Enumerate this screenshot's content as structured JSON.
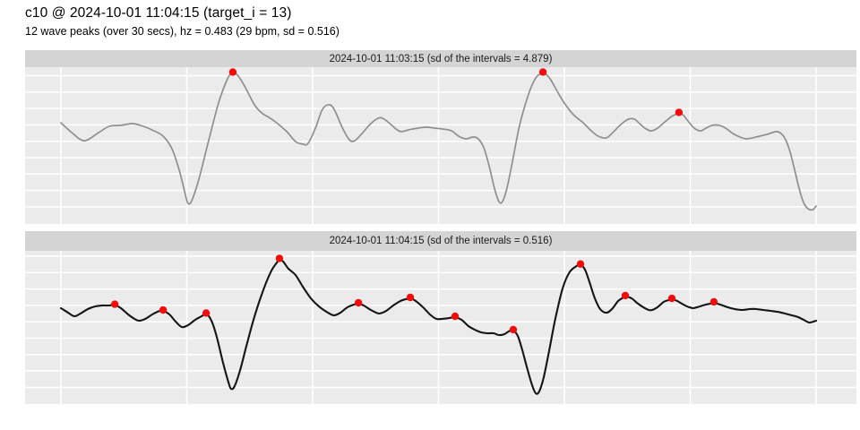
{
  "header": {
    "title": "c10 @ 2024-10-01 11:04:15 (target_i = 13)",
    "subtitle": "12 wave peaks (over 30 secs), hz = 0.483 (29 bpm, sd = 0.516)"
  },
  "colors": {
    "panel_bg": "#ebebeb",
    "strip_bg": "#d4d4d4",
    "gridline": "#ffffff",
    "peak_dot": "#f20d0d",
    "line_top": "#8f8f8f",
    "line_bottom": "#151515"
  },
  "chart_data": [
    {
      "type": "line",
      "title": "2024-10-01 11:03:15 (sd of the intervals = 4.879)",
      "x_unit": "seconds (no tick labels shown; vertical gridlines every 5 s)",
      "x_range": [
        0,
        30
      ],
      "y_unit": "normalized amplitude (0 = panel bottom, 1 = panel top; no tick labels shown)",
      "grid": "on",
      "legend": "none",
      "line_color_key": "line_top",
      "peak_count": 3,
      "points": [
        [
          0,
          0.646
        ],
        [
          0.43,
          0.583
        ],
        [
          0.93,
          0.531
        ],
        [
          1.5,
          0.583
        ],
        [
          1.92,
          0.623
        ],
        [
          2.38,
          0.629
        ],
        [
          2.85,
          0.64
        ],
        [
          3.27,
          0.623
        ],
        [
          3.7,
          0.594
        ],
        [
          4.06,
          0.56
        ],
        [
          4.41,
          0.48
        ],
        [
          4.7,
          0.343
        ],
        [
          4.95,
          0.183
        ],
        [
          5.05,
          0.131
        ],
        [
          5.2,
          0.149
        ],
        [
          5.48,
          0.286
        ],
        [
          5.84,
          0.514
        ],
        [
          6.26,
          0.771
        ],
        [
          6.62,
          0.926
        ],
        [
          6.83,
          0.963
        ],
        [
          7.05,
          0.943
        ],
        [
          7.33,
          0.869
        ],
        [
          7.69,
          0.76
        ],
        [
          7.97,
          0.709
        ],
        [
          8.26,
          0.68
        ],
        [
          8.61,
          0.64
        ],
        [
          8.97,
          0.589
        ],
        [
          9.32,
          0.526
        ],
        [
          9.61,
          0.509
        ],
        [
          9.82,
          0.514
        ],
        [
          10.11,
          0.611
        ],
        [
          10.39,
          0.731
        ],
        [
          10.68,
          0.76
        ],
        [
          10.89,
          0.72
        ],
        [
          11.17,
          0.617
        ],
        [
          11.46,
          0.537
        ],
        [
          11.67,
          0.531
        ],
        [
          11.96,
          0.577
        ],
        [
          12.31,
          0.64
        ],
        [
          12.6,
          0.674
        ],
        [
          12.78,
          0.674
        ],
        [
          13.03,
          0.646
        ],
        [
          13.31,
          0.606
        ],
        [
          13.52,
          0.589
        ],
        [
          13.81,
          0.6
        ],
        [
          14.16,
          0.611
        ],
        [
          14.52,
          0.617
        ],
        [
          14.88,
          0.611
        ],
        [
          15.16,
          0.606
        ],
        [
          15.52,
          0.594
        ],
        [
          15.8,
          0.56
        ],
        [
          16.09,
          0.543
        ],
        [
          16.37,
          0.554
        ],
        [
          16.58,
          0.543
        ],
        [
          16.8,
          0.486
        ],
        [
          17.01,
          0.371
        ],
        [
          17.22,
          0.229
        ],
        [
          17.4,
          0.143
        ],
        [
          17.54,
          0.143
        ],
        [
          17.72,
          0.229
        ],
        [
          17.94,
          0.4
        ],
        [
          18.22,
          0.629
        ],
        [
          18.58,
          0.829
        ],
        [
          18.86,
          0.931
        ],
        [
          19.08,
          0.96
        ],
        [
          19.22,
          0.96
        ],
        [
          19.43,
          0.926
        ],
        [
          19.72,
          0.846
        ],
        [
          20,
          0.771
        ],
        [
          20.36,
          0.697
        ],
        [
          20.71,
          0.651
        ],
        [
          21.07,
          0.594
        ],
        [
          21.35,
          0.56
        ],
        [
          21.67,
          0.549
        ],
        [
          21.92,
          0.583
        ],
        [
          22.28,
          0.64
        ],
        [
          22.56,
          0.669
        ],
        [
          22.78,
          0.669
        ],
        [
          22.99,
          0.64
        ],
        [
          23.2,
          0.611
        ],
        [
          23.45,
          0.594
        ],
        [
          23.7,
          0.611
        ],
        [
          23.99,
          0.651
        ],
        [
          24.27,
          0.686
        ],
        [
          24.52,
          0.703
        ],
        [
          24.7,
          0.697
        ],
        [
          24.91,
          0.657
        ],
        [
          25.16,
          0.611
        ],
        [
          25.41,
          0.594
        ],
        [
          25.62,
          0.611
        ],
        [
          25.87,
          0.629
        ],
        [
          26.16,
          0.629
        ],
        [
          26.41,
          0.611
        ],
        [
          26.69,
          0.577
        ],
        [
          26.98,
          0.554
        ],
        [
          27.22,
          0.543
        ],
        [
          27.47,
          0.549
        ],
        [
          27.76,
          0.56
        ],
        [
          28.04,
          0.571
        ],
        [
          28.26,
          0.583
        ],
        [
          28.43,
          0.589
        ],
        [
          28.61,
          0.577
        ],
        [
          28.79,
          0.537
        ],
        [
          28.97,
          0.457
        ],
        [
          29.15,
          0.343
        ],
        [
          29.32,
          0.229
        ],
        [
          29.5,
          0.137
        ],
        [
          29.68,
          0.097
        ],
        [
          29.86,
          0.091
        ],
        [
          30,
          0.114
        ]
      ],
      "peaks": [
        [
          6.83,
          0.963
        ],
        [
          19.15,
          0.963
        ],
        [
          24.55,
          0.706
        ]
      ]
    },
    {
      "type": "line",
      "title": "2024-10-01 11:04:15 (sd of the intervals = 0.516)",
      "x_unit": "seconds (no tick labels shown; vertical gridlines every 5 s)",
      "x_range": [
        0,
        30
      ],
      "y_unit": "normalized amplitude (0 = panel bottom, 1 = panel top; no tick labels shown)",
      "grid": "on",
      "legend": "none",
      "line_color_key": "line_bottom",
      "peak_count": 12,
      "points": [
        [
          0,
          0.626
        ],
        [
          0.29,
          0.596
        ],
        [
          0.53,
          0.573
        ],
        [
          0.78,
          0.591
        ],
        [
          1.07,
          0.62
        ],
        [
          1.35,
          0.637
        ],
        [
          1.64,
          0.643
        ],
        [
          1.89,
          0.643
        ],
        [
          2.14,
          0.646
        ],
        [
          2.38,
          0.626
        ],
        [
          2.67,
          0.585
        ],
        [
          2.92,
          0.556
        ],
        [
          3.1,
          0.544
        ],
        [
          3.35,
          0.556
        ],
        [
          3.63,
          0.585
        ],
        [
          3.88,
          0.605
        ],
        [
          4.06,
          0.608
        ],
        [
          4.31,
          0.585
        ],
        [
          4.56,
          0.538
        ],
        [
          4.8,
          0.503
        ],
        [
          5.05,
          0.515
        ],
        [
          5.34,
          0.55
        ],
        [
          5.59,
          0.573
        ],
        [
          5.77,
          0.588
        ],
        [
          5.98,
          0.544
        ],
        [
          6.19,
          0.439
        ],
        [
          6.44,
          0.269
        ],
        [
          6.66,
          0.14
        ],
        [
          6.76,
          0.099
        ],
        [
          6.9,
          0.117
        ],
        [
          7.12,
          0.222
        ],
        [
          7.37,
          0.38
        ],
        [
          7.65,
          0.55
        ],
        [
          7.97,
          0.713
        ],
        [
          8.33,
          0.86
        ],
        [
          8.58,
          0.924
        ],
        [
          8.68,
          0.945
        ],
        [
          8.83,
          0.93
        ],
        [
          9.04,
          0.883
        ],
        [
          9.32,
          0.842
        ],
        [
          9.61,
          0.766
        ],
        [
          9.93,
          0.69
        ],
        [
          10.25,
          0.637
        ],
        [
          10.61,
          0.596
        ],
        [
          10.85,
          0.579
        ],
        [
          11.1,
          0.596
        ],
        [
          11.39,
          0.632
        ],
        [
          11.64,
          0.649
        ],
        [
          11.82,
          0.655
        ],
        [
          12.03,
          0.643
        ],
        [
          12.31,
          0.614
        ],
        [
          12.53,
          0.596
        ],
        [
          12.67,
          0.591
        ],
        [
          12.92,
          0.608
        ],
        [
          13.2,
          0.643
        ],
        [
          13.49,
          0.673
        ],
        [
          13.7,
          0.684
        ],
        [
          13.88,
          0.69
        ],
        [
          14.09,
          0.673
        ],
        [
          14.38,
          0.632
        ],
        [
          14.66,
          0.585
        ],
        [
          14.91,
          0.556
        ],
        [
          15.16,
          0.556
        ],
        [
          15.41,
          0.561
        ],
        [
          15.66,
          0.567
        ],
        [
          15.91,
          0.55
        ],
        [
          16.19,
          0.509
        ],
        [
          16.44,
          0.485
        ],
        [
          16.69,
          0.468
        ],
        [
          16.94,
          0.462
        ],
        [
          17.19,
          0.462
        ],
        [
          17.4,
          0.45
        ],
        [
          17.62,
          0.456
        ],
        [
          17.79,
          0.474
        ],
        [
          17.97,
          0.48
        ],
        [
          18.15,
          0.444
        ],
        [
          18.33,
          0.351
        ],
        [
          18.54,
          0.222
        ],
        [
          18.72,
          0.123
        ],
        [
          18.86,
          0.07
        ],
        [
          19,
          0.082
        ],
        [
          19.18,
          0.175
        ],
        [
          19.4,
          0.351
        ],
        [
          19.64,
          0.556
        ],
        [
          19.93,
          0.754
        ],
        [
          20.18,
          0.854
        ],
        [
          20.43,
          0.895
        ],
        [
          20.64,
          0.908
        ],
        [
          20.82,
          0.877
        ],
        [
          21,
          0.795
        ],
        [
          21.21,
          0.69
        ],
        [
          21.42,
          0.62
        ],
        [
          21.67,
          0.596
        ],
        [
          21.89,
          0.62
        ],
        [
          22.14,
          0.673
        ],
        [
          22.35,
          0.696
        ],
        [
          22.42,
          0.702
        ],
        [
          22.67,
          0.69
        ],
        [
          22.88,
          0.661
        ],
        [
          23.13,
          0.632
        ],
        [
          23.35,
          0.614
        ],
        [
          23.49,
          0.614
        ],
        [
          23.7,
          0.632
        ],
        [
          23.95,
          0.667
        ],
        [
          24.13,
          0.678
        ],
        [
          24.27,
          0.684
        ],
        [
          24.48,
          0.673
        ],
        [
          24.73,
          0.649
        ],
        [
          24.95,
          0.632
        ],
        [
          25.13,
          0.626
        ],
        [
          25.37,
          0.637
        ],
        [
          25.62,
          0.649
        ],
        [
          25.8,
          0.655
        ],
        [
          25.94,
          0.661
        ],
        [
          26.19,
          0.649
        ],
        [
          26.48,
          0.632
        ],
        [
          26.76,
          0.62
        ],
        [
          27.08,
          0.614
        ],
        [
          27.37,
          0.62
        ],
        [
          27.62,
          0.62
        ],
        [
          27.9,
          0.614
        ],
        [
          28.19,
          0.608
        ],
        [
          28.47,
          0.602
        ],
        [
          28.75,
          0.591
        ],
        [
          29.04,
          0.579
        ],
        [
          29.29,
          0.567
        ],
        [
          29.5,
          0.55
        ],
        [
          29.72,
          0.532
        ],
        [
          29.89,
          0.538
        ],
        [
          30,
          0.544
        ]
      ],
      "peaks": [
        [
          2.14,
          0.646
        ],
        [
          4.06,
          0.608
        ],
        [
          5.77,
          0.588
        ],
        [
          8.68,
          0.945
        ],
        [
          11.82,
          0.655
        ],
        [
          13.88,
          0.69
        ],
        [
          15.66,
          0.567
        ],
        [
          17.97,
          0.48
        ],
        [
          20.64,
          0.908
        ],
        [
          22.42,
          0.702
        ],
        [
          24.27,
          0.684
        ],
        [
          25.94,
          0.661
        ]
      ]
    }
  ]
}
